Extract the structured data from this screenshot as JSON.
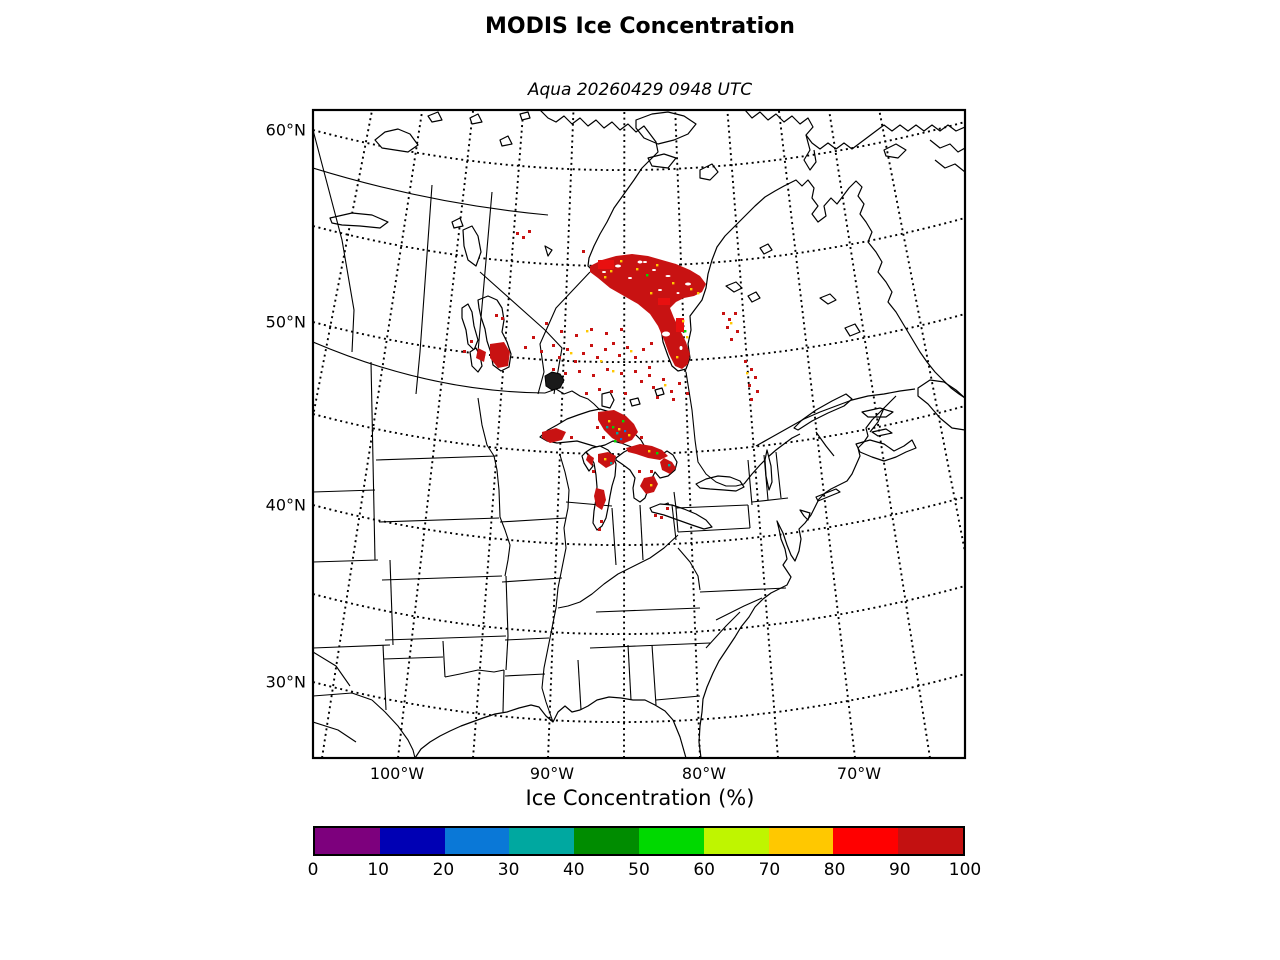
{
  "title": "MODIS Ice Concentration",
  "subtitle": "Aqua 20260429 0948 UTC",
  "axes": {
    "lat_labels": [
      "60°N",
      "50°N",
      "40°N",
      "30°N"
    ],
    "lon_labels": [
      "100°W",
      "90°W",
      "80°W",
      "70°W"
    ]
  },
  "colorbar": {
    "label": "Ice Concentration (%)",
    "ticks": [
      "0",
      "10",
      "20",
      "30",
      "40",
      "50",
      "60",
      "70",
      "80",
      "90",
      "100"
    ],
    "segment_colors": [
      "#7D007D",
      "#0000B4",
      "#0A78D7",
      "#00A8A0",
      "#008C00",
      "#00D900",
      "#BFF500",
      "#FFC800",
      "#FF0000",
      "#C31111"
    ]
  },
  "ice_classes": {
    "high": "#C81212",
    "red": "#E81010",
    "orange": "#FFC800",
    "green": "#00D900",
    "cyan": "#00A8A0",
    "blue": "#0A78D7",
    "dark": "#1A1A1A"
  },
  "map_frame_color": "#000000",
  "line_color": "#000000"
}
